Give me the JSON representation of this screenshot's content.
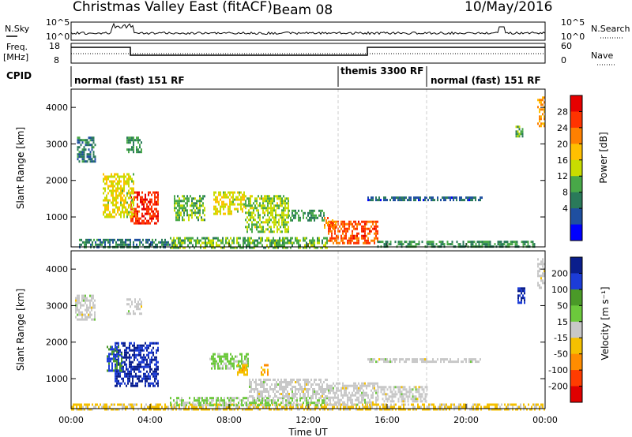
{
  "header": {
    "title": "Christmas Valley East (fitACF)",
    "beam": "Beam 08",
    "date": "10/May/2016"
  },
  "top_panels": {
    "nsky_label": "N.Sky",
    "nsky_ticks": [
      "10^5",
      "10^0"
    ],
    "nsearch_label": "N.Search",
    "nsearch_ticks": [
      "10^5",
      "10^0"
    ],
    "freq_label_line1": "Freq.",
    "freq_label_line2": "[MHz]",
    "freq_ticks": [
      "18",
      "8"
    ],
    "nave_label": "Nave",
    "nave_ticks": [
      "60",
      "0"
    ],
    "cpid_label": "CPID",
    "modes": [
      {
        "text": "normal (fast) 151 RF",
        "start_h": 0
      },
      {
        "text": "themis 3300 RF",
        "start_h": 13.5
      },
      {
        "text": "normal (fast) 151 RF",
        "start_h": 18
      }
    ],
    "freq_steps": [
      {
        "from_h": 0,
        "to_h": 3,
        "mhz": 16
      },
      {
        "from_h": 3,
        "to_h": 15,
        "mhz": 12
      },
      {
        "from_h": 15,
        "to_h": 24,
        "mhz": 16
      }
    ]
  },
  "power_panel": {
    "ylabel": "Slant Range [km]",
    "yticks": [
      "4000",
      "3000",
      "2000",
      "1000"
    ],
    "colorbar_label": "Power [dB]",
    "colorbar_ticks": [
      "28",
      "24",
      "20",
      "16",
      "12",
      "8",
      "4"
    ],
    "colorbar_colors": [
      "#e60000",
      "#ff3300",
      "#ff8000",
      "#ffc000",
      "#c8dc00",
      "#48a848",
      "#2a7a5a",
      "#1f4fa0",
      "#0000ff"
    ]
  },
  "velocity_panel": {
    "ylabel": "Slant Range [km]",
    "yticks": [
      "4000",
      "3000",
      "2000",
      "1000"
    ],
    "colorbar_label": "Velocity [m s⁻¹]",
    "colorbar_ticks": [
      "200",
      "100",
      "50",
      "15",
      "-15",
      "-50",
      "-100",
      "-200"
    ],
    "colorbar_colors": [
      "#0a1e8c",
      "#1c3cd7",
      "#4a9a28",
      "#6cc93c",
      "#c8c8c8",
      "#f5c000",
      "#ff8c00",
      "#ff3c00",
      "#e00000"
    ]
  },
  "xaxis": {
    "label": "Time UT",
    "ticks": [
      "00:00",
      "04:00",
      "08:00",
      "12:00",
      "16:00",
      "20:00",
      "00:00"
    ]
  },
  "chart_data": {
    "type": "heatmap",
    "title": "Christmas Valley East (fitACF)",
    "xlabel": "Time UT",
    "ylabel": "Slant Range [km]",
    "xlim_hours": [
      0,
      24
    ],
    "ylim_km": [
      180,
      4500
    ],
    "power_range_db": [
      0,
      30
    ],
    "velocity_range_ms": [
      -250,
      250
    ],
    "power_blobs": [
      {
        "t0": 0.4,
        "t1": 5.0,
        "r0": 180,
        "r1": 400,
        "v": 8
      },
      {
        "t0": 5.0,
        "t1": 13.0,
        "r0": 180,
        "r1": 450,
        "v": 12
      },
      {
        "t0": 13.0,
        "t1": 15.5,
        "r0": 300,
        "r1": 900,
        "v": 24
      },
      {
        "t0": 15.5,
        "t1": 23.5,
        "r0": 180,
        "r1": 350,
        "v": 10
      },
      {
        "t0": 3.0,
        "t1": 4.4,
        "r0": 800,
        "r1": 1700,
        "v": 26
      },
      {
        "t0": 1.6,
        "t1": 3.2,
        "r0": 1000,
        "r1": 2200,
        "v": 16
      },
      {
        "t0": 0.3,
        "t1": 1.2,
        "r0": 2500,
        "r1": 3200,
        "v": 8
      },
      {
        "t0": 2.8,
        "t1": 3.6,
        "r0": 2800,
        "r1": 3200,
        "v": 10
      },
      {
        "t0": 5.2,
        "t1": 6.8,
        "r0": 900,
        "r1": 1600,
        "v": 12
      },
      {
        "t0": 7.2,
        "t1": 8.8,
        "r0": 1100,
        "r1": 1700,
        "v": 16
      },
      {
        "t0": 8.8,
        "t1": 11.0,
        "r0": 600,
        "r1": 1600,
        "v": 14
      },
      {
        "t0": 11.0,
        "t1": 12.8,
        "r0": 900,
        "r1": 1200,
        "v": 10
      },
      {
        "t0": 12.8,
        "t1": 13.4,
        "r0": 700,
        "r1": 1000,
        "v": 22
      },
      {
        "t0": 15.0,
        "t1": 20.8,
        "r0": 1480,
        "r1": 1560,
        "v": 6
      },
      {
        "t0": 22.5,
        "t1": 22.9,
        "r0": 3200,
        "r1": 3500,
        "v": 12
      },
      {
        "t0": 23.6,
        "t1": 24.0,
        "r0": 3500,
        "r1": 4300,
        "v": 20
      }
    ],
    "velocity_blobs": [
      {
        "t0": 2.2,
        "t1": 4.4,
        "r0": 800,
        "r1": 2000,
        "v": 200
      },
      {
        "t0": 1.8,
        "t1": 2.6,
        "r0": 1200,
        "r1": 1900,
        "v": 140
      },
      {
        "t0": 0.2,
        "t1": 1.2,
        "r0": 2600,
        "r1": 3300,
        "v": 0
      },
      {
        "t0": 2.8,
        "t1": 3.6,
        "r0": 2800,
        "r1": 3200,
        "v": 0
      },
      {
        "t0": 0.0,
        "t1": 24.0,
        "r0": 180,
        "r1": 320,
        "v": -40
      },
      {
        "t0": 5.0,
        "t1": 13.0,
        "r0": 300,
        "r1": 500,
        "v": 30
      },
      {
        "t0": 7.0,
        "t1": 9.0,
        "r0": 1300,
        "r1": 1700,
        "v": 40
      },
      {
        "t0": 9.0,
        "t1": 13.0,
        "r0": 500,
        "r1": 1000,
        "v": 0
      },
      {
        "t0": 13.0,
        "t1": 15.5,
        "r0": 300,
        "r1": 900,
        "v": 0
      },
      {
        "t0": 15.5,
        "t1": 18.0,
        "r0": 400,
        "r1": 800,
        "v": 0
      },
      {
        "t0": 9.6,
        "t1": 10.0,
        "r0": 1100,
        "r1": 1400,
        "v": -80
      },
      {
        "t0": 8.4,
        "t1": 8.9,
        "r0": 1100,
        "r1": 1400,
        "v": -60
      },
      {
        "t0": 15.0,
        "t1": 20.8,
        "r0": 1480,
        "r1": 1560,
        "v": 0
      },
      {
        "t0": 22.6,
        "t1": 23.0,
        "r0": 3100,
        "r1": 3500,
        "v": 200
      },
      {
        "t0": 23.6,
        "t1": 24.0,
        "r0": 3500,
        "r1": 4300,
        "v": 0
      }
    ]
  }
}
